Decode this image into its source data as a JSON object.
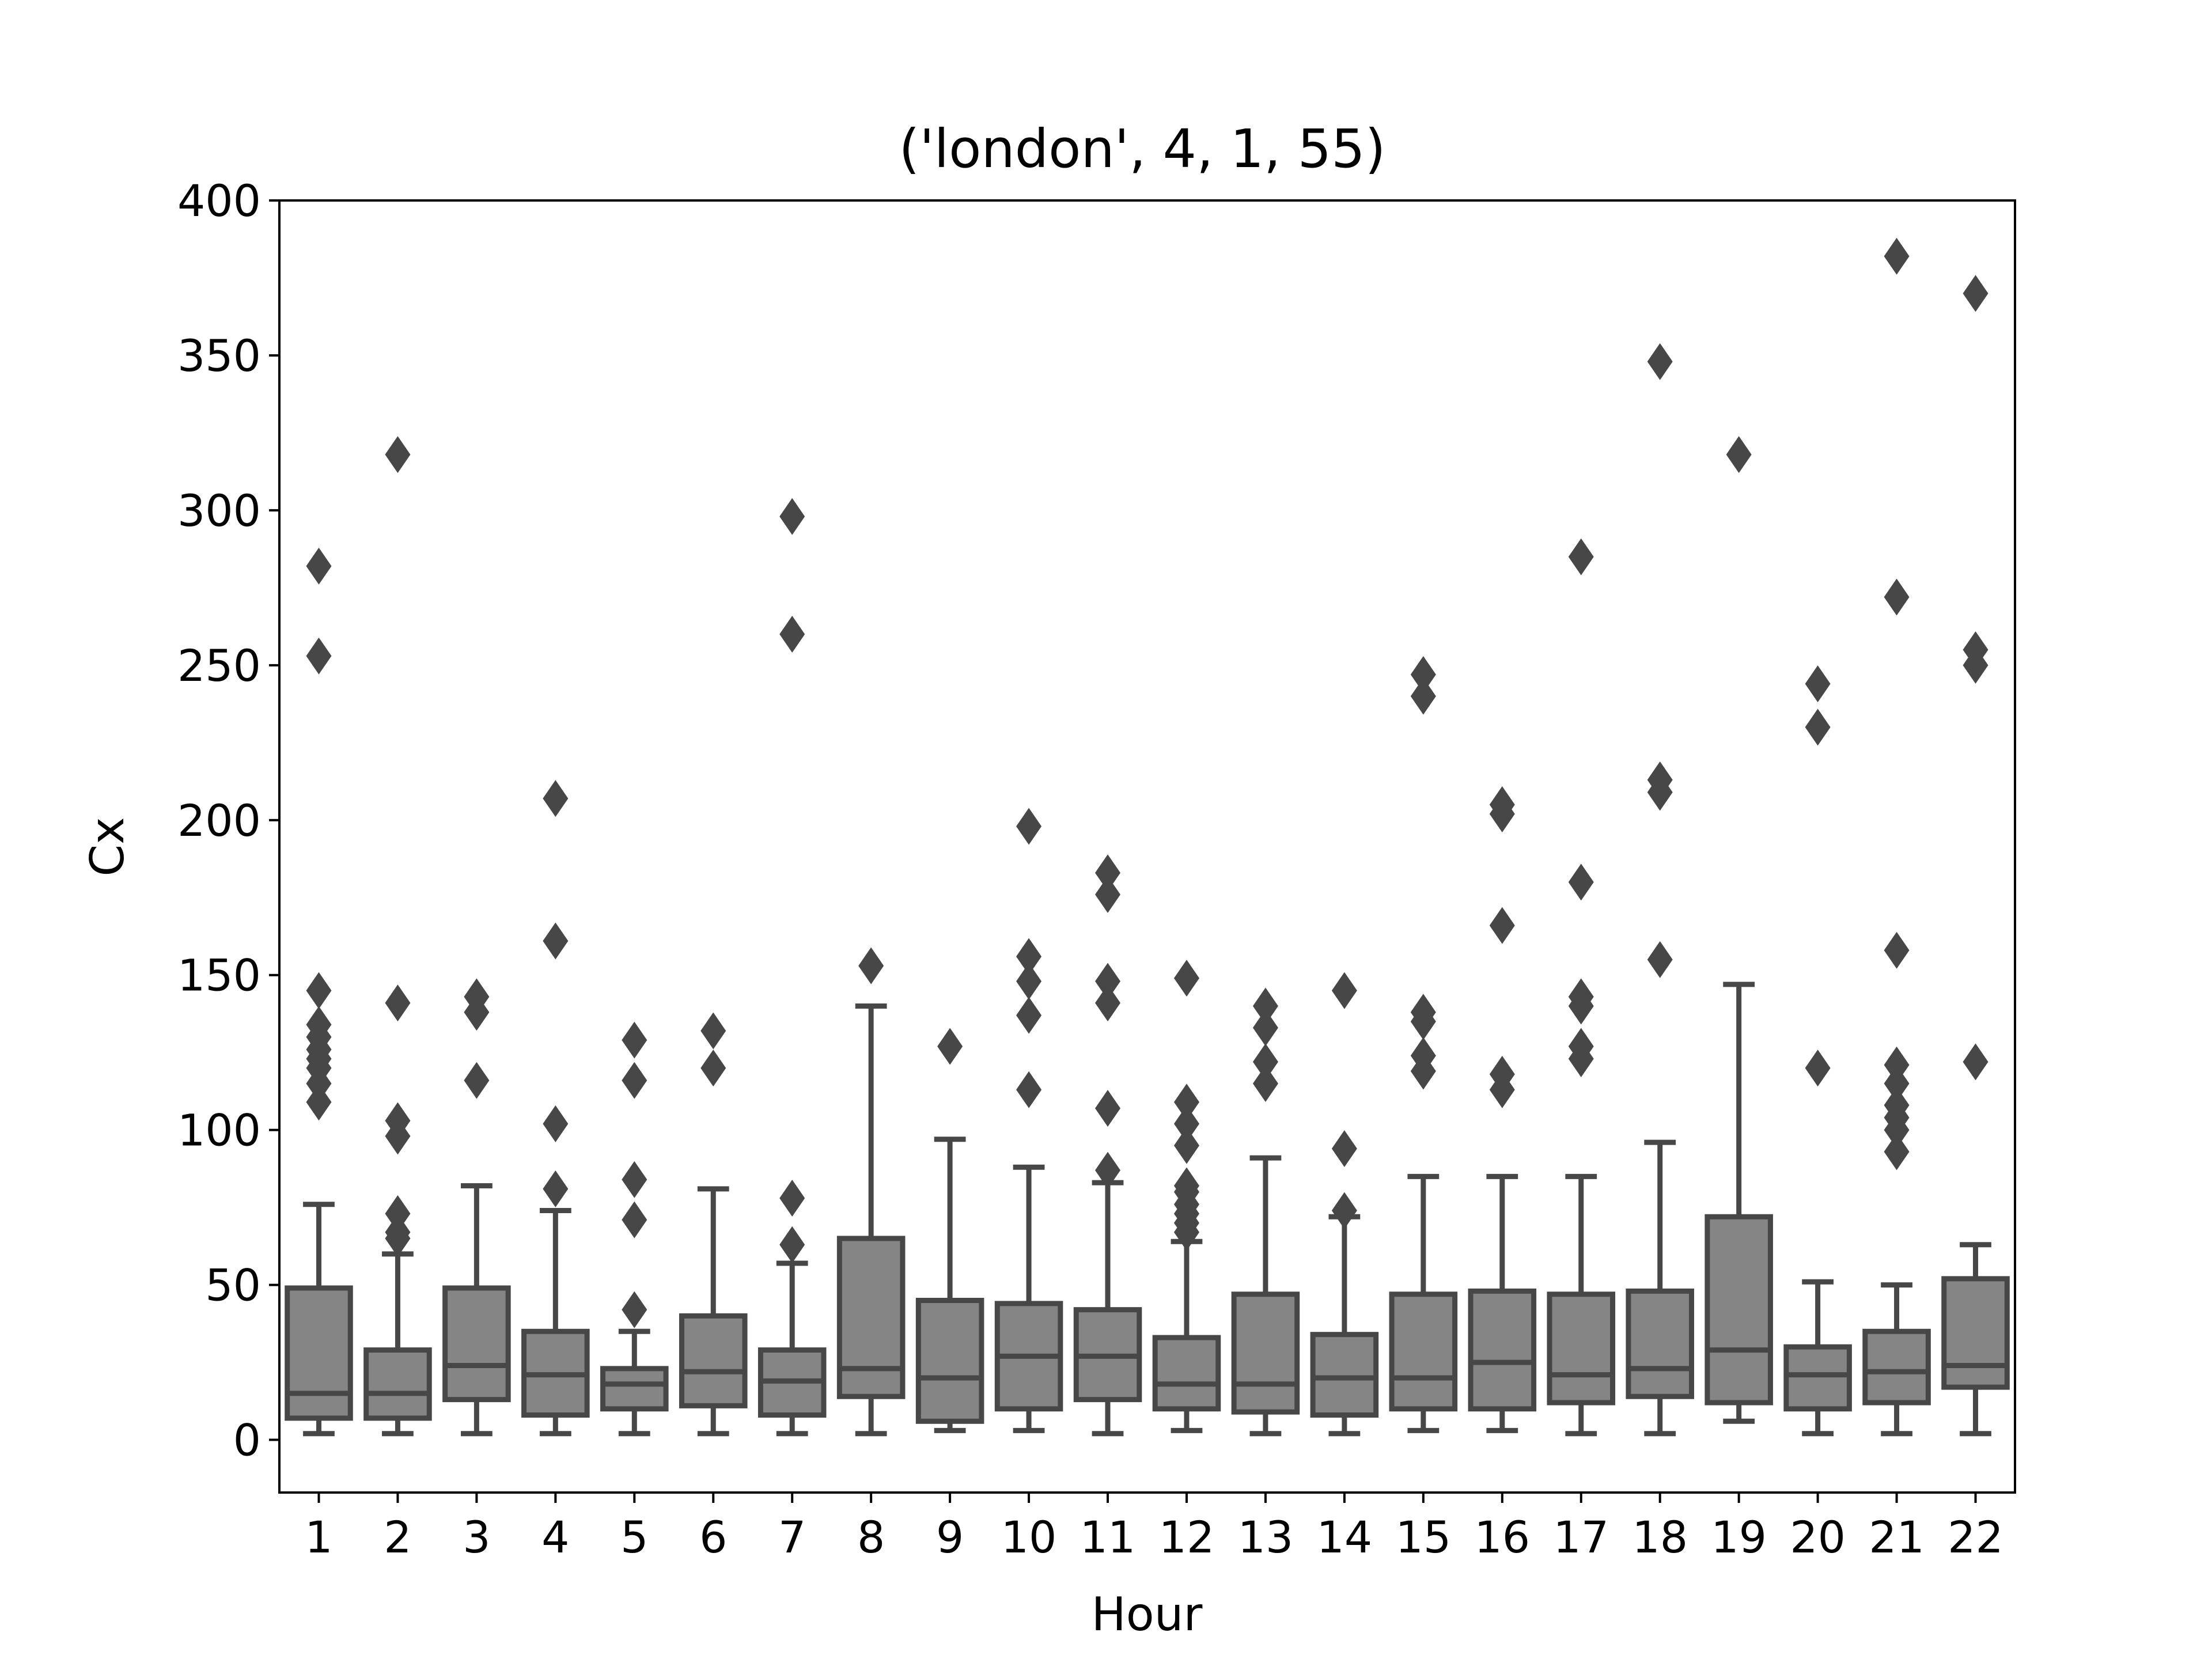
{
  "chart_data": {
    "type": "box",
    "title": "('london', 4, 1, 55)",
    "xlabel": "Hour",
    "ylabel": "Cx",
    "ylim": [
      -17,
      400
    ],
    "yticks": [
      0,
      50,
      100,
      150,
      200,
      250,
      300,
      350,
      400
    ],
    "categories": [
      "1",
      "2",
      "3",
      "4",
      "5",
      "6",
      "7",
      "8",
      "9",
      "10",
      "11",
      "12",
      "13",
      "14",
      "15",
      "16",
      "17",
      "18",
      "19",
      "20",
      "21",
      "22"
    ],
    "grid": false,
    "legend": "none",
    "colors": {
      "box_fill": "#858585",
      "line": "#474747",
      "outlier": "#474747"
    },
    "boxes": [
      {
        "category": "1",
        "whislo": 2,
        "q1": 7,
        "med": 15,
        "q3": 49,
        "whishi": 76,
        "fliers": [
          109,
          115,
          120,
          123,
          126,
          130,
          134,
          145,
          253,
          282
        ]
      },
      {
        "category": "2",
        "whislo": 2,
        "q1": 7,
        "med": 15,
        "q3": 29,
        "whishi": 60,
        "fliers": [
          65,
          67,
          73,
          98,
          103,
          141,
          318
        ]
      },
      {
        "category": "3",
        "whislo": 2,
        "q1": 13,
        "med": 24,
        "q3": 49,
        "whishi": 82,
        "fliers": [
          116,
          138,
          143
        ]
      },
      {
        "category": "4",
        "whislo": 2,
        "q1": 8,
        "med": 21,
        "q3": 35,
        "whishi": 74,
        "fliers": [
          81,
          102,
          161,
          207
        ]
      },
      {
        "category": "5",
        "whislo": 2,
        "q1": 10,
        "med": 18,
        "q3": 23,
        "whishi": 35,
        "fliers": [
          42,
          71,
          84,
          116,
          129
        ]
      },
      {
        "category": "6",
        "whislo": 2,
        "q1": 11,
        "med": 22,
        "q3": 40,
        "whishi": 81,
        "fliers": [
          120,
          132
        ]
      },
      {
        "category": "7",
        "whislo": 2,
        "q1": 8,
        "med": 19,
        "q3": 29,
        "whishi": 57,
        "fliers": [
          63,
          78,
          260,
          298
        ]
      },
      {
        "category": "8",
        "whislo": 2,
        "q1": 14,
        "med": 23,
        "q3": 65,
        "whishi": 140,
        "fliers": [
          153
        ]
      },
      {
        "category": "9",
        "whislo": 3,
        "q1": 6,
        "med": 20,
        "q3": 45,
        "whishi": 97,
        "fliers": [
          127
        ]
      },
      {
        "category": "10",
        "whislo": 3,
        "q1": 10,
        "med": 27,
        "q3": 44,
        "whishi": 88,
        "fliers": [
          113,
          137,
          148,
          156,
          198
        ]
      },
      {
        "category": "11",
        "whislo": 2,
        "q1": 13,
        "med": 27,
        "q3": 42,
        "whishi": 83,
        "fliers": [
          87,
          107,
          141,
          148,
          176,
          183
        ]
      },
      {
        "category": "12",
        "whislo": 3,
        "q1": 10,
        "med": 18,
        "q3": 33,
        "whishi": 64,
        "fliers": [
          67,
          70,
          73,
          76,
          80,
          82,
          95,
          102,
          109,
          149
        ]
      },
      {
        "category": "13",
        "whislo": 2,
        "q1": 9,
        "med": 18,
        "q3": 47,
        "whishi": 91,
        "fliers": [
          115,
          122,
          133,
          140
        ]
      },
      {
        "category": "14",
        "whislo": 2,
        "q1": 8,
        "med": 20,
        "q3": 34,
        "whishi": 72,
        "fliers": [
          74,
          94,
          145
        ]
      },
      {
        "category": "15",
        "whislo": 3,
        "q1": 10,
        "med": 20,
        "q3": 47,
        "whishi": 85,
        "fliers": [
          119,
          124,
          135,
          138,
          240,
          247
        ]
      },
      {
        "category": "16",
        "whislo": 3,
        "q1": 10,
        "med": 25,
        "q3": 48,
        "whishi": 85,
        "fliers": [
          113,
          118,
          166,
          202,
          205
        ]
      },
      {
        "category": "17",
        "whislo": 2,
        "q1": 12,
        "med": 21,
        "q3": 47,
        "whishi": 85,
        "fliers": [
          123,
          127,
          140,
          143,
          180,
          285
        ]
      },
      {
        "category": "18",
        "whislo": 2,
        "q1": 14,
        "med": 23,
        "q3": 48,
        "whishi": 96,
        "fliers": [
          155,
          209,
          213,
          348
        ]
      },
      {
        "category": "19",
        "whislo": 6,
        "q1": 12,
        "med": 29,
        "q3": 72,
        "whishi": 147,
        "fliers": [
          318
        ]
      },
      {
        "category": "20",
        "whislo": 2,
        "q1": 10,
        "med": 21,
        "q3": 30,
        "whishi": 51,
        "fliers": [
          120,
          230,
          244
        ]
      },
      {
        "category": "21",
        "whislo": 2,
        "q1": 12,
        "med": 22,
        "q3": 35,
        "whishi": 50,
        "fliers": [
          93,
          100,
          104,
          108,
          115,
          121,
          158,
          272,
          382
        ]
      },
      {
        "category": "22",
        "whislo": 2,
        "q1": 17,
        "med": 24,
        "q3": 52,
        "whishi": 63,
        "fliers": [
          122,
          250,
          255,
          370
        ]
      }
    ]
  }
}
